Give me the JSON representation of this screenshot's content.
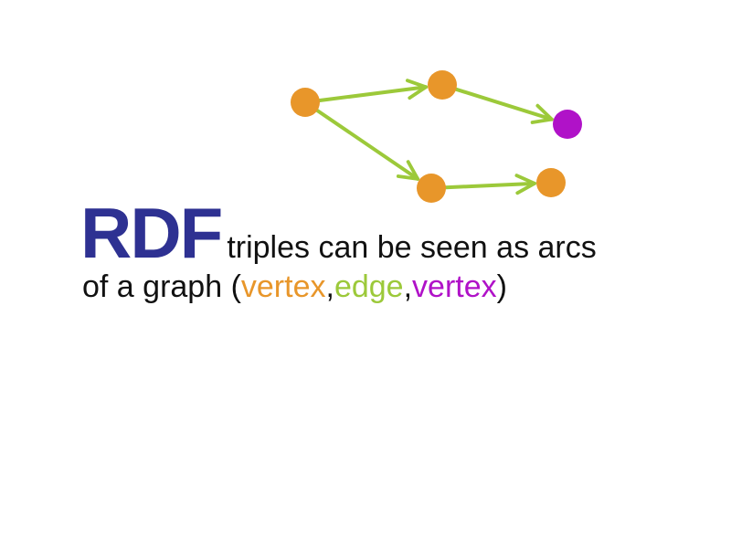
{
  "colors": {
    "vertex": "#E8962A",
    "edge": "#9CC93A",
    "object_vertex": "#B012C8",
    "rdf": "#2E3192",
    "text": "#111111"
  },
  "headline": {
    "rdf": "RDF",
    "line1_rest": "triples can be seen as arcs",
    "line2_prefix": "of a graph (",
    "vertex_word": "vertex",
    "comma1": ",",
    "edge_word": "edge",
    "comma2": ",",
    "vertex_word2": "vertex",
    "line2_suffix": ")"
  },
  "graph": {
    "nodes": [
      {
        "id": "n1",
        "role": "vertex"
      },
      {
        "id": "n2",
        "role": "vertex"
      },
      {
        "id": "n3",
        "role": "object_vertex"
      },
      {
        "id": "n4",
        "role": "vertex"
      },
      {
        "id": "n5",
        "role": "vertex"
      }
    ],
    "edges": [
      {
        "from": "n1",
        "to": "n2"
      },
      {
        "from": "n2",
        "to": "n3"
      },
      {
        "from": "n1",
        "to": "n4"
      },
      {
        "from": "n4",
        "to": "n5"
      }
    ]
  }
}
